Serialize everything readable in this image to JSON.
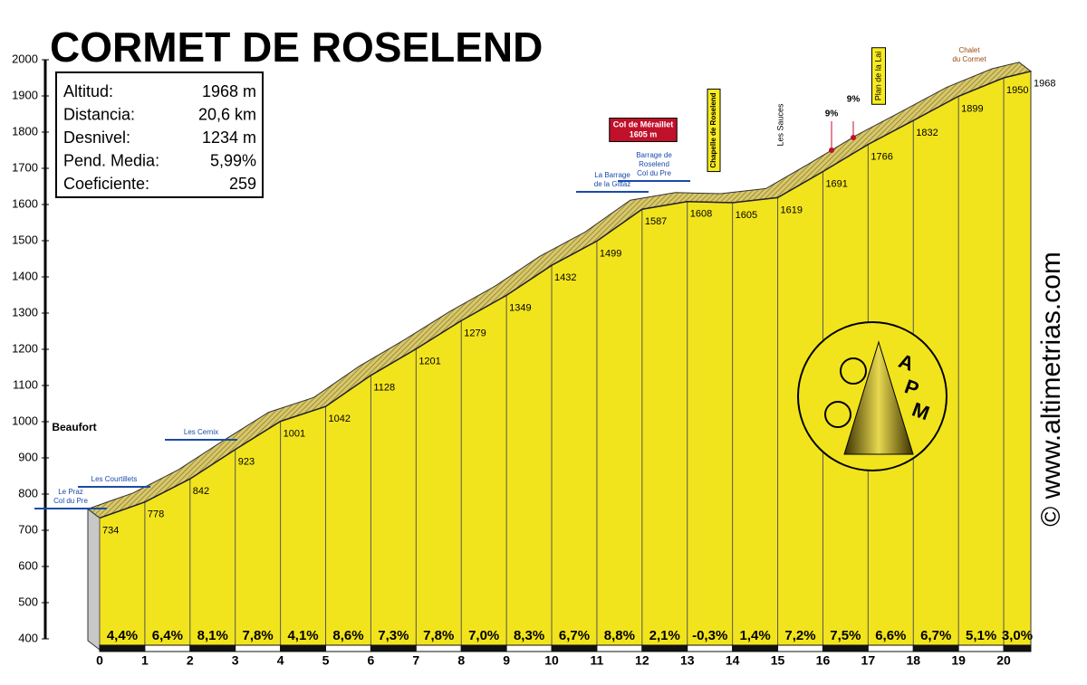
{
  "chart_data": {
    "type": "area",
    "title": "CORMET DE ROSELEND",
    "stats": [
      [
        "Altitud:",
        "1968 m"
      ],
      [
        "Distancia:",
        "20,6 km"
      ],
      [
        "Desnivel:",
        "1234 m"
      ],
      [
        "Pend. Media:",
        "5,99%"
      ],
      [
        "Coeficiente:",
        "259"
      ]
    ],
    "x": [
      0,
      1,
      2,
      3,
      4,
      5,
      6,
      7,
      8,
      9,
      10,
      11,
      12,
      13,
      14,
      15,
      16,
      17,
      18,
      19,
      20,
      20.6
    ],
    "values": [
      734,
      778,
      842,
      923,
      1001,
      1042,
      1128,
      1201,
      1279,
      1349,
      1432,
      1499,
      1587,
      1608,
      1605,
      1619,
      1691,
      1766,
      1832,
      1899,
      1950,
      1968
    ],
    "gradients": [
      4.4,
      6.4,
      8.1,
      7.8,
      4.1,
      8.6,
      7.3,
      7.8,
      7.0,
      8.3,
      6.7,
      8.8,
      2.1,
      -0.3,
      1.4,
      7.2,
      7.5,
      6.6,
      6.7,
      5.1,
      3.0
    ],
    "gradient_labels": [
      "4,4%",
      "6,4%",
      "8,1%",
      "7,8%",
      "4,1%",
      "8,6%",
      "7,3%",
      "7,8%",
      "7,0%",
      "8,3%",
      "6,7%",
      "8,8%",
      "2,1%",
      "-0,3%",
      "1,4%",
      "7,2%",
      "7,5%",
      "6,6%",
      "6,7%",
      "5,1%",
      "3,0%"
    ],
    "xlim": [
      0,
      20.6
    ],
    "xticks": [
      0,
      1,
      2,
      3,
      4,
      5,
      6,
      7,
      8,
      9,
      10,
      11,
      12,
      13,
      14,
      15,
      16,
      17,
      18,
      19,
      20
    ],
    "ylim": [
      400,
      2000
    ],
    "yticks": [
      400,
      500,
      600,
      700,
      800,
      900,
      1000,
      1100,
      1200,
      1300,
      1400,
      1500,
      1600,
      1700,
      1800,
      1900,
      2000
    ],
    "color": "#f2e41c",
    "annotations": [
      [
        "Beaufort"
      ],
      [
        "Le Praz",
        "Col du Pre"
      ],
      [
        "Les Courtillets"
      ],
      [
        "Les Cernix"
      ],
      [
        "La Barrage",
        "de la Gittaz"
      ],
      [
        "Col de Méraillet",
        "1605 m"
      ],
      [
        "Barrage de",
        "Roselend",
        "Col du Pre"
      ],
      [
        "Chapelle de Roselend"
      ],
      [
        "Les Sauces"
      ],
      [
        "Plan de la Lai"
      ],
      [
        "Chalet",
        "du Cormet"
      ],
      [
        "9%"
      ],
      [
        "9%"
      ]
    ],
    "logo": [
      "A",
      "P",
      "M"
    ],
    "copyright": "© www.altimetrias.com"
  }
}
